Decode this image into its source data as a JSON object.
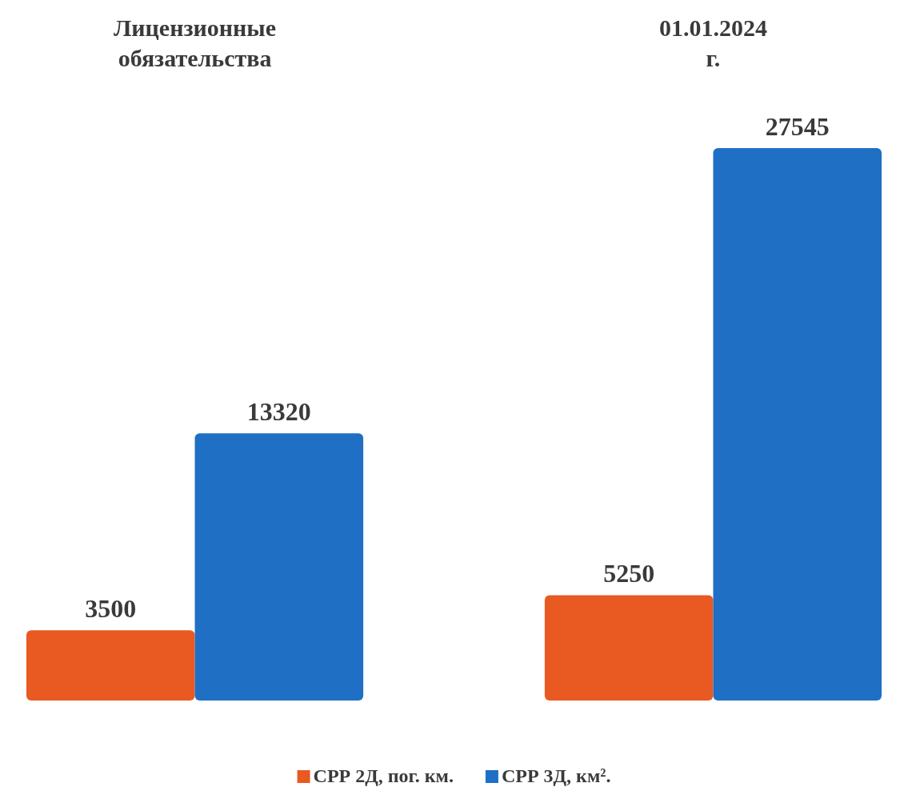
{
  "chart_data": {
    "type": "bar",
    "categories": [
      "Лицензионные обязательства",
      "01.01.2024 г."
    ],
    "series": [
      {
        "name": "СРР 2Д, пог. км.",
        "color": "#e85a22",
        "values": [
          3500,
          5250
        ]
      },
      {
        "name": "СРР 3Д, км².",
        "color": "#1f6fc4",
        "values": [
          13320,
          27545
        ]
      }
    ],
    "data_labels": true,
    "legend": "bottom"
  }
}
